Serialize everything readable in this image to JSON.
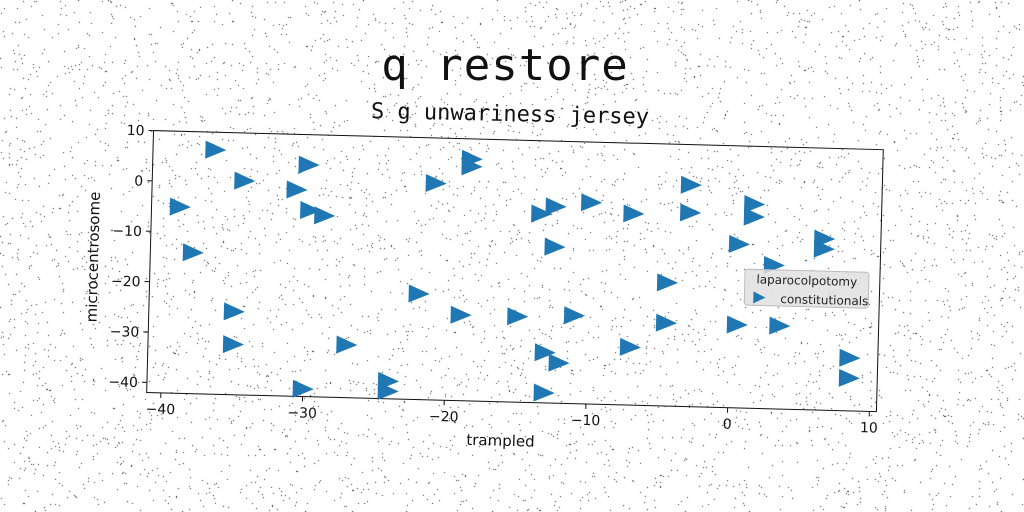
{
  "chart_data": {
    "type": "scatter",
    "title": "q restore",
    "subtitle": "S g unwariness jersey",
    "xlabel": "trampled",
    "ylabel": "microcentrosome",
    "xlim": [
      -41,
      10.5
    ],
    "ylim": [
      -42,
      10
    ],
    "xticks": [
      -40,
      -30,
      -20,
      -10,
      0,
      10
    ],
    "yticks": [
      10,
      0,
      -10,
      -20,
      -30,
      -40
    ],
    "grid": false,
    "legend": {
      "placement": "right",
      "title": "laparocolpotomy",
      "entries": [
        "constitutionals"
      ]
    },
    "marker": "triangle-right",
    "color": "#1f77b4",
    "series": [
      {
        "name": "constitutionals",
        "points": [
          {
            "x": -36.6,
            "y": 6.5
          },
          {
            "x": -30.0,
            "y": 4.0
          },
          {
            "x": -34.5,
            "y": 0.5
          },
          {
            "x": -30.8,
            "y": -1.0
          },
          {
            "x": -39.0,
            "y": -5.0
          },
          {
            "x": -29.8,
            "y": -5.0
          },
          {
            "x": -28.8,
            "y": -6.0
          },
          {
            "x": -38.0,
            "y": -14.0
          },
          {
            "x": -35.0,
            "y": -25.5
          },
          {
            "x": -35.0,
            "y": -32.0
          },
          {
            "x": -27.0,
            "y": -31.5
          },
          {
            "x": -30.0,
            "y": -40.5
          },
          {
            "x": -24.0,
            "y": -38.5
          },
          {
            "x": -24.0,
            "y": -40.5
          },
          {
            "x": -21.0,
            "y": 1.0
          },
          {
            "x": -18.5,
            "y": 6.0
          },
          {
            "x": -18.5,
            "y": 4.5
          },
          {
            "x": -22.0,
            "y": -21.0
          },
          {
            "x": -19.0,
            "y": -25.0
          },
          {
            "x": -15.0,
            "y": -25.0
          },
          {
            "x": -13.5,
            "y": -4.5
          },
          {
            "x": -12.5,
            "y": -3.0
          },
          {
            "x": -12.5,
            "y": -11.0
          },
          {
            "x": -10.0,
            "y": -2.0
          },
          {
            "x": -7.0,
            "y": -4.0
          },
          {
            "x": -11.0,
            "y": -24.5
          },
          {
            "x": -13.0,
            "y": -32.0
          },
          {
            "x": -12.0,
            "y": -34.0
          },
          {
            "x": -13.0,
            "y": -40.0
          },
          {
            "x": -7.0,
            "y": -30.5
          },
          {
            "x": -4.5,
            "y": -17.5
          },
          {
            "x": -4.5,
            "y": -25.5
          },
          {
            "x": -3.0,
            "y": 2.0
          },
          {
            "x": -3.0,
            "y": -3.5
          },
          {
            "x": 0.5,
            "y": -9.5
          },
          {
            "x": 1.5,
            "y": -1.5
          },
          {
            "x": 1.5,
            "y": -4.0
          },
          {
            "x": 3.0,
            "y": -13.5
          },
          {
            "x": 0.5,
            "y": -25.5
          },
          {
            "x": 3.5,
            "y": -25.5
          },
          {
            "x": 6.5,
            "y": -8.0
          },
          {
            "x": 6.5,
            "y": -10.0
          },
          {
            "x": 8.5,
            "y": -31.5
          },
          {
            "x": 8.5,
            "y": -35.5
          }
        ]
      }
    ]
  }
}
